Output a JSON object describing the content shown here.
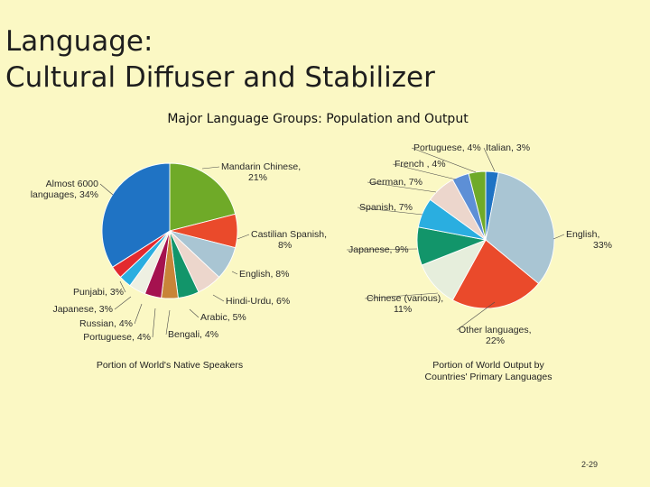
{
  "slide": {
    "title_line1": "Language:",
    "title_line2": "Cultural Diffuser and Stabilizer",
    "subtitle": "Major Language Groups: Population and Output",
    "page_number": "2-29"
  },
  "chart_data": [
    {
      "type": "pie",
      "caption": "Portion of World's Native Speakers",
      "slices": [
        {
          "lines": [
            "Mandarin Chinese,",
            "21%"
          ],
          "value": 21,
          "color": "#6faa28"
        },
        {
          "lines": [
            "Castilian Spanish,",
            "8%"
          ],
          "value": 8,
          "color": "#ea4a2b"
        },
        {
          "lines": [
            "English, 8%"
          ],
          "value": 8,
          "color": "#a9c5d3"
        },
        {
          "lines": [
            "Hindi-Urdu, 6%"
          ],
          "value": 6,
          "color": "#ecd6cc"
        },
        {
          "lines": [
            "Arabic, 5%"
          ],
          "value": 5,
          "color": "#12956a"
        },
        {
          "lines": [
            "Bengali, 4%"
          ],
          "value": 4,
          "color": "#c98438"
        },
        {
          "lines": [
            "Portuguese, 4%"
          ],
          "value": 4,
          "color": "#a5124f"
        },
        {
          "lines": [
            "Russian, 4%"
          ],
          "value": 4,
          "color": "#eef0e2"
        },
        {
          "lines": [
            "Japanese, 3%"
          ],
          "value": 3,
          "color": "#2aaee0"
        },
        {
          "lines": [
            "Punjabi, 3%"
          ],
          "value": 3,
          "color": "#e32a2f"
        },
        {
          "lines": [
            "Almost 6000",
            "languages, 34%"
          ],
          "value": 34,
          "color": "#1f73c4"
        }
      ]
    },
    {
      "type": "pie",
      "caption_lines": [
        "Portion of World Output by",
        "Countries' Primary Languages"
      ],
      "slices": [
        {
          "lines": [
            "Italian, 3%"
          ],
          "value": 3,
          "color": "#1f73c4"
        },
        {
          "lines": [
            "English,",
            "33%"
          ],
          "value": 33,
          "color": "#a9c5d3"
        },
        {
          "lines": [
            "Other languages,",
            "22%"
          ],
          "value": 22,
          "color": "#ea4a2b"
        },
        {
          "lines": [
            "Chinese (various),",
            "11%"
          ],
          "value": 11,
          "color": "#e6eedc"
        },
        {
          "lines": [
            "Japanese, 9%"
          ],
          "value": 9,
          "color": "#12956a"
        },
        {
          "lines": [
            "Spanish, 7%"
          ],
          "value": 7,
          "color": "#2aaee0"
        },
        {
          "lines": [
            "German, 7%"
          ],
          "value": 7,
          "color": "#ecd6cc"
        },
        {
          "lines": [
            "French , 4%"
          ],
          "value": 4,
          "color": "#5d8fd6"
        },
        {
          "lines": [
            "Portuguese, 4%"
          ],
          "value": 4,
          "color": "#6faa28"
        }
      ]
    }
  ]
}
